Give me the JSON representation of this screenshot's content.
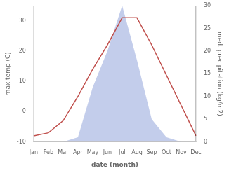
{
  "chart_data": {
    "type": "line",
    "categories": [
      "Jan",
      "Feb",
      "Mar",
      "Apr",
      "May",
      "Jun",
      "Jul",
      "Aug",
      "Sep",
      "Oct",
      "Nov",
      "Dec"
    ],
    "series": [
      {
        "type": "area",
        "axis": "y2",
        "color": "#b8c4e8",
        "values": [
          0,
          0,
          0,
          1,
          12,
          20,
          30,
          18,
          5,
          1,
          0,
          0
        ]
      },
      {
        "type": "line",
        "color": "#c0504d",
        "values": [
          -8,
          -7,
          -3,
          5,
          14,
          22,
          31,
          31,
          22,
          12,
          2,
          -8
        ]
      }
    ],
    "xlabel": "date (month)",
    "ylabel": "max temp (C)",
    "y2label": "med. precipitation (kg/m2)",
    "ylim": [
      -10,
      35
    ],
    "yticks": [
      -10,
      0,
      10,
      20,
      30
    ],
    "y2lim": [
      0,
      30
    ],
    "y2ticks": [
      0,
      5,
      10,
      15,
      20,
      25,
      30
    ],
    "grid": false
  }
}
